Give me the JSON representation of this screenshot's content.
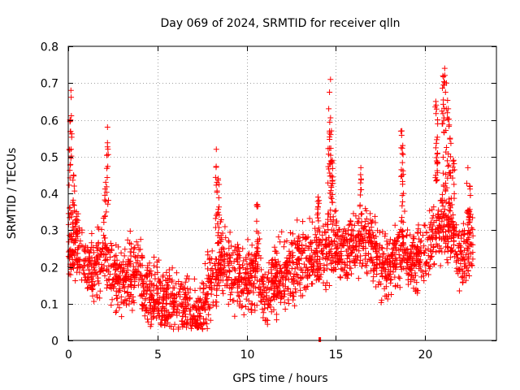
{
  "chart_data": {
    "type": "scatter",
    "title": "Day 069 of 2024, SRMTID for receiver qlln",
    "xlabel": "GPS time / hours",
    "ylabel": "SRMTID / TECUs",
    "xlim": [
      0,
      24
    ],
    "ylim": [
      0,
      0.8
    ],
    "x_ticks": [
      0,
      5,
      10,
      15,
      20
    ],
    "y_ticks": [
      0,
      0.1,
      0.2,
      0.3,
      0.4,
      0.5,
      0.6,
      0.7,
      0.8
    ],
    "x_tick_labels": [
      "0",
      "5",
      "10",
      "15",
      "20"
    ],
    "y_tick_labels": [
      "0",
      "0.1",
      "0.2",
      "0.3",
      "0.4",
      "0.5",
      "0.6",
      "0.7",
      "0.8"
    ],
    "grid": true,
    "marker": "plus",
    "color": "#ff0000",
    "data_end_hour": 22.7,
    "series": [
      {
        "name": "SRMTID",
        "trend": [
          [
            0.0,
            0.26
          ],
          [
            0.5,
            0.24
          ],
          [
            1.0,
            0.2
          ],
          [
            1.5,
            0.19
          ],
          [
            2.0,
            0.25
          ],
          [
            2.5,
            0.18
          ],
          [
            3.0,
            0.16
          ],
          [
            3.5,
            0.19
          ],
          [
            4.0,
            0.17
          ],
          [
            4.5,
            0.13
          ],
          [
            5.0,
            0.12
          ],
          [
            5.5,
            0.11
          ],
          [
            6.0,
            0.1
          ],
          [
            6.5,
            0.09
          ],
          [
            7.0,
            0.07
          ],
          [
            7.5,
            0.08
          ],
          [
            8.0,
            0.15
          ],
          [
            8.5,
            0.22
          ],
          [
            9.0,
            0.2
          ],
          [
            9.5,
            0.18
          ],
          [
            10.0,
            0.17
          ],
          [
            10.5,
            0.2
          ],
          [
            11.0,
            0.12
          ],
          [
            11.5,
            0.15
          ],
          [
            12.0,
            0.18
          ],
          [
            12.5,
            0.19
          ],
          [
            13.0,
            0.21
          ],
          [
            13.5,
            0.22
          ],
          [
            14.0,
            0.23
          ],
          [
            14.5,
            0.24
          ],
          [
            15.0,
            0.25
          ],
          [
            15.5,
            0.24
          ],
          [
            16.0,
            0.26
          ],
          [
            16.5,
            0.27
          ],
          [
            17.0,
            0.26
          ],
          [
            17.5,
            0.21
          ],
          [
            18.0,
            0.2
          ],
          [
            18.5,
            0.24
          ],
          [
            19.0,
            0.23
          ],
          [
            19.5,
            0.22
          ],
          [
            20.0,
            0.23
          ],
          [
            20.5,
            0.28
          ],
          [
            21.0,
            0.33
          ],
          [
            21.5,
            0.3
          ],
          [
            22.0,
            0.22
          ],
          [
            22.5,
            0.25
          ]
        ],
        "spikes": [
          [
            0.1,
            0.6
          ],
          [
            0.15,
            0.68
          ],
          [
            0.3,
            0.45
          ],
          [
            0.45,
            0.35
          ],
          [
            2.1,
            0.43
          ],
          [
            2.2,
            0.58
          ],
          [
            8.3,
            0.52
          ],
          [
            8.4,
            0.44
          ],
          [
            10.6,
            0.37
          ],
          [
            14.0,
            0.39
          ],
          [
            14.6,
            0.63
          ],
          [
            14.7,
            0.71
          ],
          [
            14.75,
            0.57
          ],
          [
            14.8,
            0.49
          ],
          [
            16.4,
            0.47
          ],
          [
            18.7,
            0.57
          ],
          [
            18.75,
            0.53
          ],
          [
            20.6,
            0.65
          ],
          [
            20.7,
            0.6
          ],
          [
            21.0,
            0.72
          ],
          [
            21.1,
            0.74
          ],
          [
            21.2,
            0.7
          ],
          [
            21.3,
            0.63
          ],
          [
            21.4,
            0.55
          ],
          [
            21.6,
            0.49
          ],
          [
            22.4,
            0.47
          ],
          [
            22.5,
            0.42
          ]
        ],
        "outlier": [
          14.1,
          0.0
        ]
      }
    ]
  }
}
